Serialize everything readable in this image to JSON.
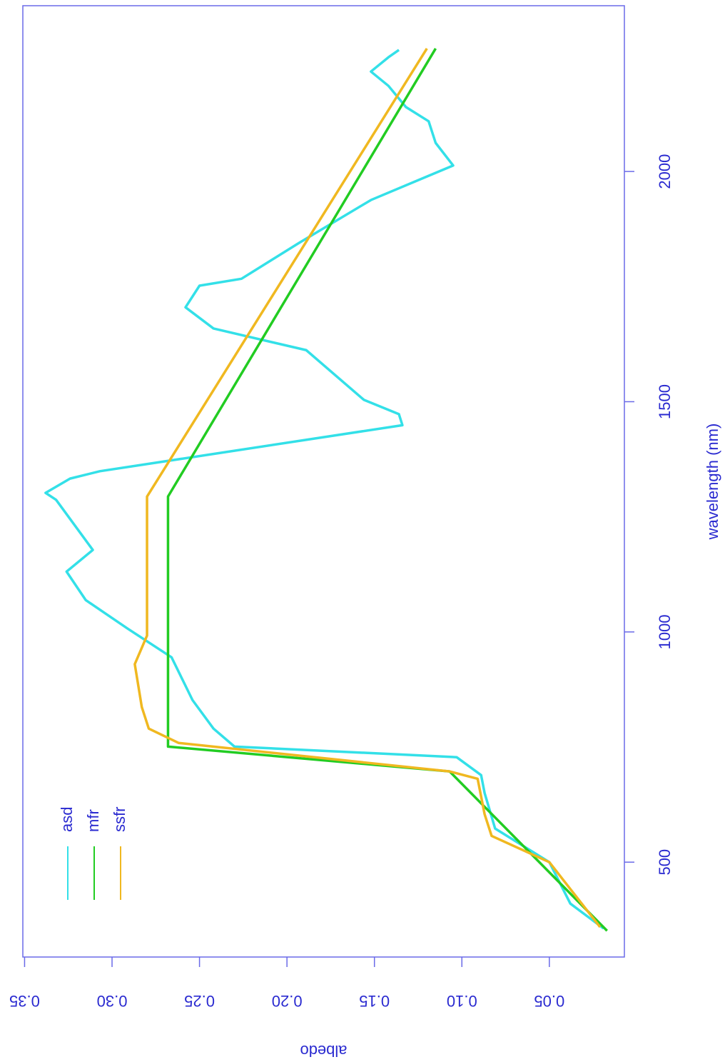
{
  "chart_data": {
    "type": "line",
    "xlabel": "wavelength (nm)",
    "ylabel": "albedo",
    "xlim": [
      294,
      2360
    ],
    "ylim": [
      0.0071,
      0.351
    ],
    "xticks": [
      500,
      1000,
      1500,
      2000
    ],
    "yticks": [
      0.05,
      {
        "value": 0.1,
        "label": "0.10"
      },
      0.15,
      {
        "value": 0.2,
        "label": "0.20"
      },
      0.25,
      {
        "value": 0.3,
        "label": "0.30"
      },
      0.35
    ],
    "axis_color": "#6a6ae8",
    "text_color": "#2a2ad0",
    "legend": "top-left",
    "series": [
      {
        "name": "asd",
        "color": "#33e0e8",
        "x": [
          356,
          410,
          500,
          573,
          650,
          689,
          728,
          751,
          790,
          852,
          945,
          1007,
          1038,
          1069,
          1131,
          1178,
          1287,
          1302,
          1333,
          1349,
          1449,
          1473,
          1504,
          1612,
          1659,
          1705,
          1752,
          1767,
          1845,
          1938,
          2013,
          2062,
          2109,
          2140,
          2186,
          2217,
          2248,
          2264
        ],
        "values": [
          0.019,
          0.038,
          0.05,
          0.081,
          0.087,
          0.089,
          0.103,
          0.23,
          0.242,
          0.254,
          0.266,
          0.291,
          0.303,
          0.315,
          0.326,
          0.311,
          0.332,
          0.338,
          0.324,
          0.307,
          0.134,
          0.136,
          0.156,
          0.189,
          0.242,
          0.258,
          0.25,
          0.226,
          0.193,
          0.152,
          0.105,
          0.115,
          0.119,
          0.132,
          0.142,
          0.152,
          0.142,
          0.136
        ]
      },
      {
        "name": "mfr",
        "color": "#22cc22",
        "x": [
          351,
          697,
          751,
          1294,
          2267
        ],
        "values": [
          0.017,
          0.107,
          0.268,
          0.268,
          0.115
        ]
      },
      {
        "name": "ssfr",
        "color": "#f0b820",
        "x": [
          359,
          500,
          557,
          604,
          681,
          697,
          759,
          790,
          837,
          930,
          992,
          1294,
          2267
        ],
        "values": [
          0.021,
          0.05,
          0.083,
          0.087,
          0.091,
          0.107,
          0.262,
          0.279,
          0.283,
          0.287,
          0.28,
          0.28,
          0.12
        ]
      }
    ]
  }
}
